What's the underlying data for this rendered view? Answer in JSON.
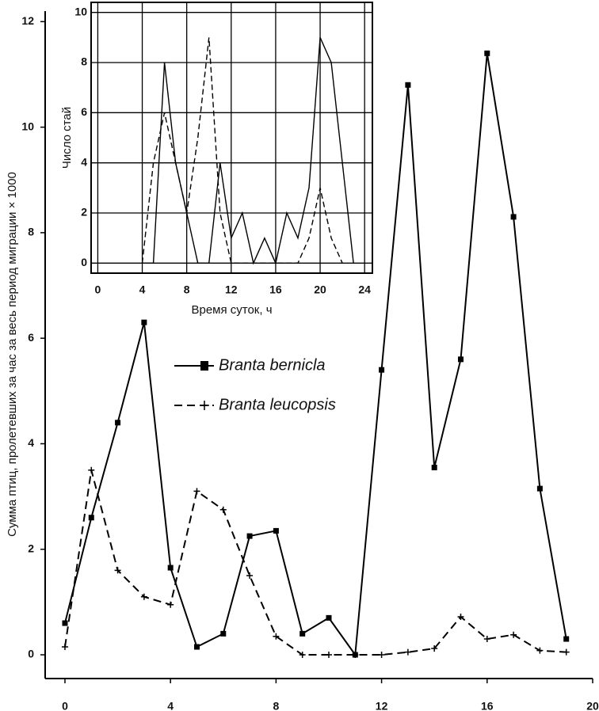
{
  "chart_data": [
    {
      "type": "line",
      "y_label": "Сумма птиц, пролетевших за час за весь период миграции × 1000",
      "x": [
        0,
        1,
        2,
        3,
        4,
        5,
        6,
        7,
        8,
        9,
        10,
        11,
        12,
        13,
        14,
        15,
        16,
        17,
        18,
        19
      ],
      "series": [
        {
          "name": "Branta bernicla",
          "color": "#000000",
          "dash": false,
          "marker": "square",
          "values": [
            0.6,
            2.6,
            4.4,
            6.3,
            1.65,
            0.15,
            0.4,
            2.25,
            2.35,
            0.4,
            0.7,
            0,
            5.4,
            10.8,
            3.55,
            5.6,
            11.4,
            8.3,
            3.15,
            0.3
          ]
        },
        {
          "name": "Branta leucopsis",
          "color": "#000000",
          "dash": true,
          "marker": "plus",
          "values": [
            0.15,
            3.5,
            1.6,
            1.1,
            0.95,
            3.1,
            2.75,
            1.5,
            0.35,
            0,
            0,
            0,
            0,
            0.05,
            0.12,
            0.72,
            0.3,
            0.38,
            0.08,
            0.05
          ]
        }
      ],
      "xlim": [
        -0.75,
        20
      ],
      "ylim": [
        -0.45,
        12.2
      ],
      "xticks": [
        0,
        4,
        8,
        12,
        16,
        20
      ],
      "yticks": [
        0,
        2,
        4,
        6,
        8,
        10,
        12
      ],
      "grid": false,
      "box": false,
      "legend": true
    },
    {
      "type": "line",
      "x_label": "Время суток, ч",
      "y_label": "Число стай",
      "x": [
        4,
        5,
        6,
        7,
        8,
        9,
        10,
        11,
        12,
        13,
        14,
        15,
        16,
        17,
        18,
        19,
        20,
        21,
        22,
        23
      ],
      "series": [
        {
          "color": "#000000",
          "dash": false,
          "values": [
            0,
            0,
            8,
            4,
            2,
            0,
            0,
            4,
            1,
            2,
            0,
            1,
            0,
            2,
            1,
            3,
            9,
            8,
            4,
            0
          ]
        },
        {
          "color": "#000000",
          "dash": true,
          "values": [
            0,
            4,
            6,
            4,
            2,
            5,
            9,
            2,
            0,
            0,
            0,
            0,
            0,
            0,
            0,
            1,
            3,
            1,
            0,
            null
          ]
        }
      ],
      "xlim": [
        -0.6,
        24.7
      ],
      "ylim": [
        -0.4,
        10.4
      ],
      "xticks": [
        0,
        4,
        8,
        12,
        16,
        20,
        24
      ],
      "yticks": [
        0,
        2,
        4,
        6,
        8,
        10
      ],
      "grid": true,
      "box": true,
      "legend": false
    }
  ]
}
